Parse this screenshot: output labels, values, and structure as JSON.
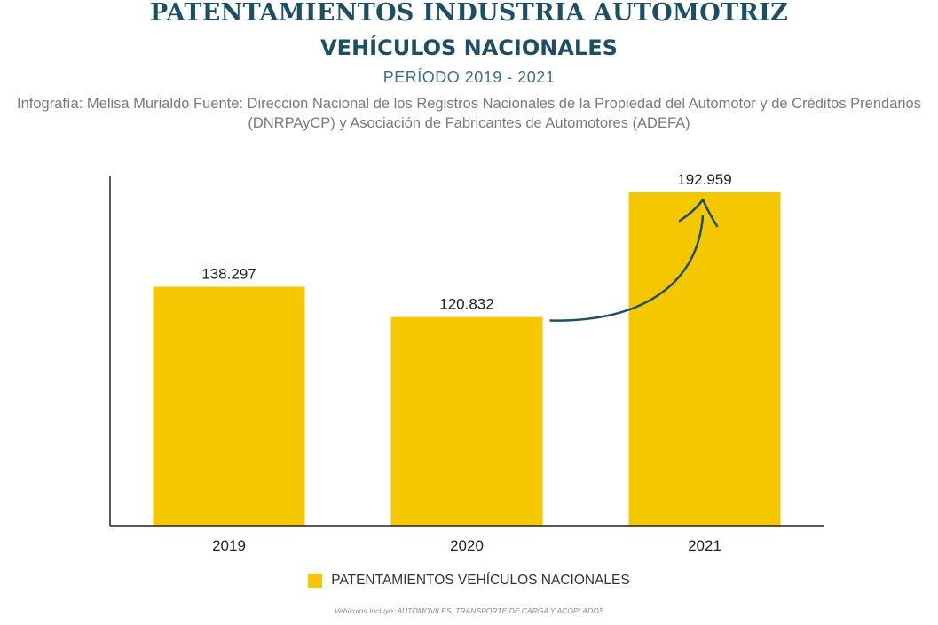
{
  "header": {
    "title": "PATENTAMIENTOS INDUSTRIA AUTOMOTRIZ",
    "subtitle": "VEHÍCULOS NACIONALES",
    "period": "PERÍODO 2019 - 2021",
    "source": "Infografía: Melisa Murialdo Fuente: Direccion Nacional de los Registros Nacionales de la Propiedad del Automotor y de Créditos Prendarios (DNRPAyCP) y Asociación de Fabricantes de Automotores (ADEFA)"
  },
  "chart_data": {
    "type": "bar",
    "categories": [
      "2019",
      "2020",
      "2021"
    ],
    "series": [
      {
        "name": "PATENTAMIENTOS VEHÍCULOS NACIONALES",
        "values": [
          138297,
          120832,
          192959
        ],
        "labels": [
          "138.297",
          "120.832",
          "192.959"
        ]
      }
    ],
    "ylim": [
      0,
      200000
    ],
    "grid": false,
    "legend": "bottom",
    "annotation": "curved arrow from 2020 to 2021 bar",
    "colors": {
      "bar": "#f5c700",
      "arrow": "#1d4e63",
      "axis": "#222222"
    }
  },
  "legend": {
    "label": "PATENTAMIENTOS VEHÍCULOS NACIONALES"
  },
  "footnote": "Vehículos Incluye: AUTOMOVILES, TRANSPORTE DE CARGA Y ACOPLADOS"
}
